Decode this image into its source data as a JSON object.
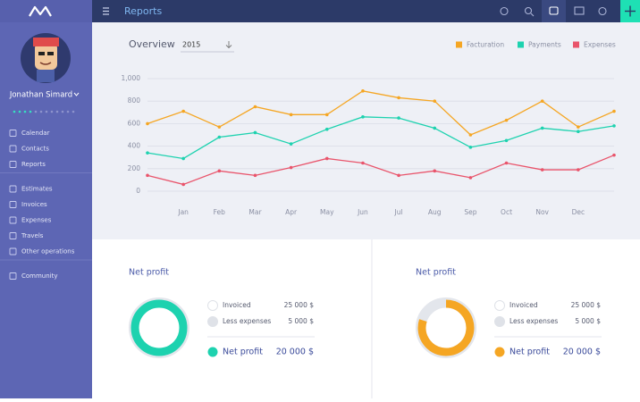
{
  "sidebar": {
    "user": "Jonathan Simard",
    "menu": [
      [
        "Calendar",
        "Contacts",
        "Reports"
      ],
      [
        "Estimates",
        "Invoices",
        "Expenses",
        "Travels",
        "Other operations"
      ],
      [
        "Community"
      ]
    ]
  },
  "header": {
    "title": "Reports"
  },
  "overview": {
    "title": "Overview",
    "year": "2015"
  },
  "chart_data": {
    "type": "line",
    "categories": [
      null,
      "Jan",
      "Feb",
      "Mar",
      "Apr",
      "May",
      "Jun",
      "Jul",
      "Aug",
      "Sep",
      "Oct",
      "Nov",
      "Dec",
      null
    ],
    "series": [
      {
        "name": "Facturation",
        "color": "#f5a623",
        "values": [
          600,
          710,
          570,
          750,
          680,
          680,
          890,
          830,
          800,
          500,
          630,
          800,
          570,
          710
        ]
      },
      {
        "name": "Payments",
        "color": "#1dd2af",
        "values": [
          340,
          290,
          480,
          520,
          420,
          550,
          660,
          650,
          560,
          390,
          450,
          560,
          530,
          580
        ]
      },
      {
        "name": "Expenses",
        "color": "#e9546b",
        "values": [
          140,
          60,
          180,
          140,
          210,
          290,
          250,
          140,
          180,
          120,
          250,
          190,
          190,
          320
        ]
      }
    ],
    "ylim": [
      0,
      1000
    ],
    "yticks": [
      0,
      200,
      400,
      600,
      800,
      {
        "value": 1000,
        "label": "1,000"
      }
    ],
    "grid": true,
    "legend": "top-right"
  },
  "panels": [
    {
      "title": "Net profit",
      "rows": [
        {
          "label": "Invoiced",
          "amount": "25 000 $"
        },
        {
          "label": "Less expenses",
          "amount": "5 000 $"
        }
      ],
      "total": {
        "label": "Net profit",
        "amount": "20 000 $"
      }
    },
    {
      "title": "Net profit",
      "rows": [
        {
          "label": "Invoiced",
          "amount": "25 000 $"
        },
        {
          "label": "Less expenses",
          "amount": "5 000 $"
        }
      ],
      "total": {
        "label": "Net profit",
        "amount": "20 000 $"
      }
    }
  ]
}
